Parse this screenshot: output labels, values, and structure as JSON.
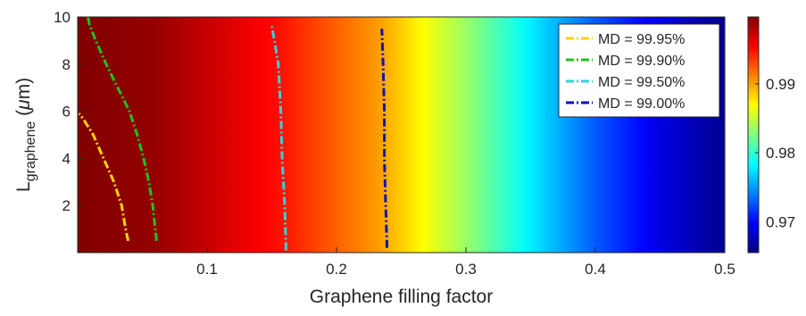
{
  "chart_data": {
    "type": "heatmap",
    "xlabel": "Graphene filling factor",
    "ylabel_main": "L",
    "ylabel_sub": "graphene",
    "ylabel_unit_open": " (",
    "ylabel_unit_mu": "μ",
    "ylabel_unit_rest": "m)",
    "xlim": [
      0.0,
      0.5
    ],
    "ylim": [
      0.0,
      10.0
    ],
    "x_ticks": [
      {
        "value": 0.1,
        "label": "0.1"
      },
      {
        "value": 0.2,
        "label": "0.2"
      },
      {
        "value": 0.3,
        "label": "0.3"
      },
      {
        "value": 0.4,
        "label": "0.4"
      },
      {
        "value": 0.5,
        "label": "0.5"
      }
    ],
    "y_ticks": [
      {
        "value": 2,
        "label": "2"
      },
      {
        "value": 4,
        "label": "4"
      },
      {
        "value": 6,
        "label": "6"
      },
      {
        "value": 8,
        "label": "8"
      },
      {
        "value": 10,
        "label": "10"
      }
    ],
    "colorbar": {
      "range": [
        0.9655,
        0.9997
      ],
      "ticks": [
        {
          "value": 0.97,
          "label": "0.97"
        },
        {
          "value": 0.98,
          "label": "0.98"
        },
        {
          "value": 0.99,
          "label": "0.99"
        }
      ],
      "colormap": "jet"
    },
    "field_profile": [
      {
        "x": 0.0,
        "md": 0.9997
      },
      {
        "x": 0.06,
        "md": 0.999
      },
      {
        "x": 0.155,
        "md": 0.995
      },
      {
        "x": 0.235,
        "md": 0.99
      },
      {
        "x": 0.3,
        "md": 0.9835
      },
      {
        "x": 0.35,
        "md": 0.9778
      },
      {
        "x": 0.4,
        "md": 0.9728
      },
      {
        "x": 0.45,
        "md": 0.9688
      },
      {
        "x": 0.5,
        "md": 0.966
      }
    ],
    "series": [
      {
        "name": "MD = 99.95%",
        "color": "#ffd500",
        "points": [
          [
            0.039,
            0.5
          ],
          [
            0.037,
            1.0
          ],
          [
            0.034,
            2.0
          ],
          [
            0.028,
            3.0
          ],
          [
            0.02,
            4.0
          ],
          [
            0.012,
            5.0
          ],
          [
            0.004,
            5.7
          ],
          [
            0.001,
            5.9
          ]
        ]
      },
      {
        "name": "MD = 99.90%",
        "color": "#1ec31e",
        "points": [
          [
            0.061,
            0.5
          ],
          [
            0.06,
            1.0
          ],
          [
            0.058,
            2.0
          ],
          [
            0.055,
            3.0
          ],
          [
            0.051,
            4.0
          ],
          [
            0.046,
            5.0
          ],
          [
            0.04,
            6.0
          ],
          [
            0.031,
            7.0
          ],
          [
            0.022,
            8.0
          ],
          [
            0.014,
            9.0
          ],
          [
            0.009,
            9.7
          ],
          [
            0.008,
            10.0
          ]
        ]
      },
      {
        "name": "MD = 99.50%",
        "color": "#2ed3de",
        "points": [
          [
            0.161,
            0.1
          ],
          [
            0.16,
            2.0
          ],
          [
            0.158,
            4.0
          ],
          [
            0.157,
            6.0
          ],
          [
            0.155,
            8.0
          ],
          [
            0.152,
            9.0
          ],
          [
            0.15,
            9.6
          ]
        ]
      },
      {
        "name": "MD = 99.00%",
        "color": "#0a14b4",
        "points": [
          [
            0.239,
            0.2
          ],
          [
            0.238,
            2.0
          ],
          [
            0.237,
            4.0
          ],
          [
            0.237,
            6.0
          ],
          [
            0.236,
            8.0
          ],
          [
            0.235,
            9.5
          ]
        ]
      }
    ],
    "legend_position": "top-right"
  }
}
